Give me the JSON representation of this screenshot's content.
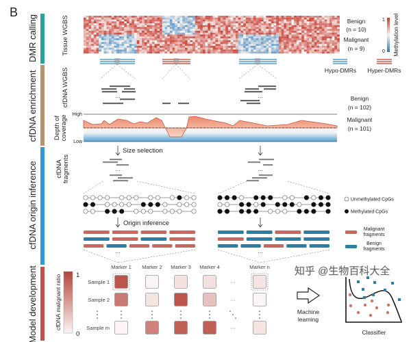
{
  "panel_letter": "B",
  "sections": [
    {
      "label": "DMR calling",
      "color": "#2aa39a"
    },
    {
      "label": "cfDNA enrichment",
      "color": "#b89371"
    },
    {
      "label": "cfDNA origin inference",
      "color": "#2f9ad4"
    },
    {
      "label": "Model development",
      "color": "#c0504d"
    }
  ],
  "tissue": {
    "axis_label": "Tissue WGBS",
    "benign": "Benign",
    "benign_n": "(n = 10)",
    "malignant": "Malignant",
    "malignant_n": "(n = 9)",
    "colorbar": {
      "title": "Methylation level",
      "max": "1",
      "min": "0",
      "high_color": "#c6362b",
      "mid_color": "#f7f2f0",
      "low_color": "#2b7bb9"
    }
  },
  "dmr_legend": {
    "hypo": "Hypo-DMRs",
    "hyper": "Hyper-DMRs",
    "hypo_color": "#7fb6d8",
    "hyper_color": "#d9867a"
  },
  "cfdna_wgbs": {
    "axis_label": "cfDNA WGBS",
    "ellipsis": "...",
    "benign": "Benign",
    "benign_n": "(n = 102)",
    "malignant": "Malignant",
    "malignant_n": "(n = 101)"
  },
  "coverage": {
    "axis_label_1": "Depth of",
    "axis_label_2": "coverage",
    "high": "High",
    "low": "Low"
  },
  "size_selection": {
    "label": "Size selection",
    "axis_label_1": "cfDNA",
    "axis_label_2": "fragments",
    "ellipsis": "..."
  },
  "cpg": {
    "left_rows": [
      "oooo ooo oo o●oo",
      "●● oooo ●●●o ooo",
      "oo ●●● ooo ooo o"
    ],
    "right_rows": [
      "●●●o ●●● oo ●o●●",
      "oo ●●o● ●●●o ●●●",
      "●● ●●● ooo ●●● ●"
    ],
    "legend_unmethylated": "Unmethylated CpGs",
    "legend_methylated": "Methylated CpGs"
  },
  "origin_inference": {
    "label": "Origin inference",
    "ellipsis": "..."
  },
  "fragments": {
    "left_rows": [
      [
        "M",
        "M",
        "M",
        "M"
      ],
      [
        "B",
        "M",
        "B",
        "M"
      ],
      [
        "M",
        "B",
        "M",
        "M",
        "M"
      ]
    ],
    "right_rows": [
      [
        "B",
        "B",
        "M",
        "B"
      ],
      [
        "M",
        "B",
        "B",
        "B"
      ],
      [
        "B",
        "B",
        "M",
        "B",
        "B"
      ]
    ],
    "malignant_color": "#c9695e",
    "benign_color": "#2a7fa3",
    "legend_malignant_1": "Malignant",
    "legend_malignant_2": "fragments",
    "legend_benign_1": "Benign",
    "legend_benign_2": "fragments"
  },
  "model": {
    "colorbar_title": "cfDNA malignant ratio",
    "colorbar_max": "1",
    "colorbar_min": "0",
    "markers": [
      "Marker 1",
      "Marker 2",
      "Marker 3",
      "Marker 4",
      "Marker n"
    ],
    "samples": [
      "Sample 1",
      "Sample 2",
      "Sample m"
    ],
    "matrix": [
      [
        0.9,
        0.0,
        0.12,
        0.12,
        0.1
      ],
      [
        0.7,
        0.1,
        0.9,
        0.3,
        0.0
      ],
      [
        0.0,
        0.65,
        0.85,
        0.85,
        0.1
      ]
    ],
    "ellipsis_h": "···",
    "ml_label_1": "Machine",
    "ml_label_2": "learning",
    "classifier_label": "Classifier"
  },
  "watermark": "知乎 @生物百科大全"
}
